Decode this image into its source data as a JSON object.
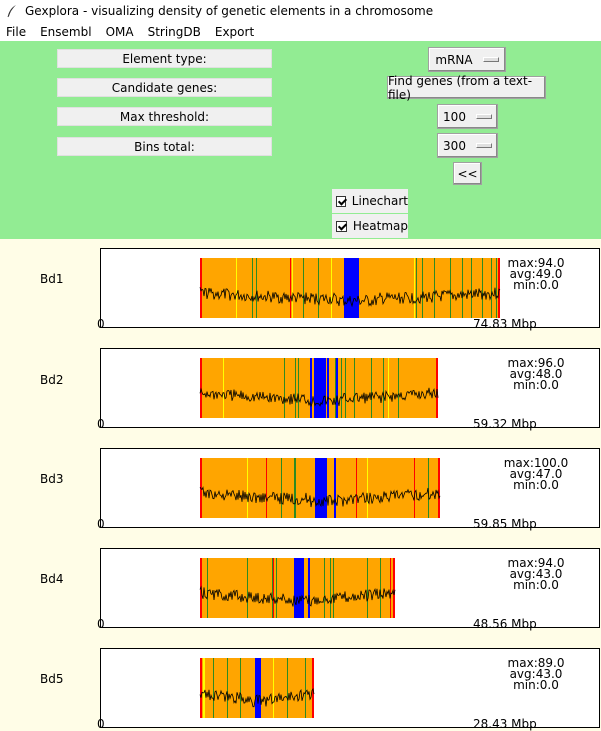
{
  "window": {
    "title": "Gexplora - visualizing density of genetic elements in a chromosome"
  },
  "menu": [
    "File",
    "Ensembl",
    "OMA",
    "StringDB",
    "Export"
  ],
  "controls": {
    "labels": [
      "Element type:",
      "Candidate genes:",
      "Max threshold:",
      "Bins total:"
    ],
    "element_type": "mRNA",
    "find_genes_label": "Find genes (from a text-file)",
    "max_threshold": "100",
    "bins_total": "300",
    "collapse_label": "<<",
    "linechart_label": "Linechart",
    "linechart_checked": true,
    "heatmap_label": "Heatmap",
    "heatmap_checked": true
  },
  "colors": {
    "heat_base": "#ffa500",
    "green": "#2e8b22",
    "yellow": "#ffff00",
    "red": "#ff0000",
    "blue": "#0000ff"
  },
  "chromosomes": [
    {
      "name": "Bd1",
      "max": "max:94.0",
      "avg": "avg:49.0",
      "min": "min:0.0",
      "length": "74.83 Mbp",
      "mbp": 74.83
    },
    {
      "name": "Bd2",
      "max": "max:96.0",
      "avg": "avg:48.0",
      "min": "min:0.0",
      "length": "59.32 Mbp",
      "mbp": 59.32
    },
    {
      "name": "Bd3",
      "max": "max:100.0",
      "avg": "avg:47.0",
      "min": "min:0.0",
      "length": "59.85 Mbp",
      "mbp": 59.85
    },
    {
      "name": "Bd4",
      "max": "max:94.0",
      "avg": "avg:43.0",
      "min": "min:0.0",
      "length": "48.56 Mbp",
      "mbp": 48.56
    },
    {
      "name": "Bd5",
      "max": "max:89.0",
      "avg": "avg:43.0",
      "min": "min:0.0",
      "length": "28.43 Mbp",
      "mbp": 28.43
    }
  ],
  "axis_start": "0"
}
